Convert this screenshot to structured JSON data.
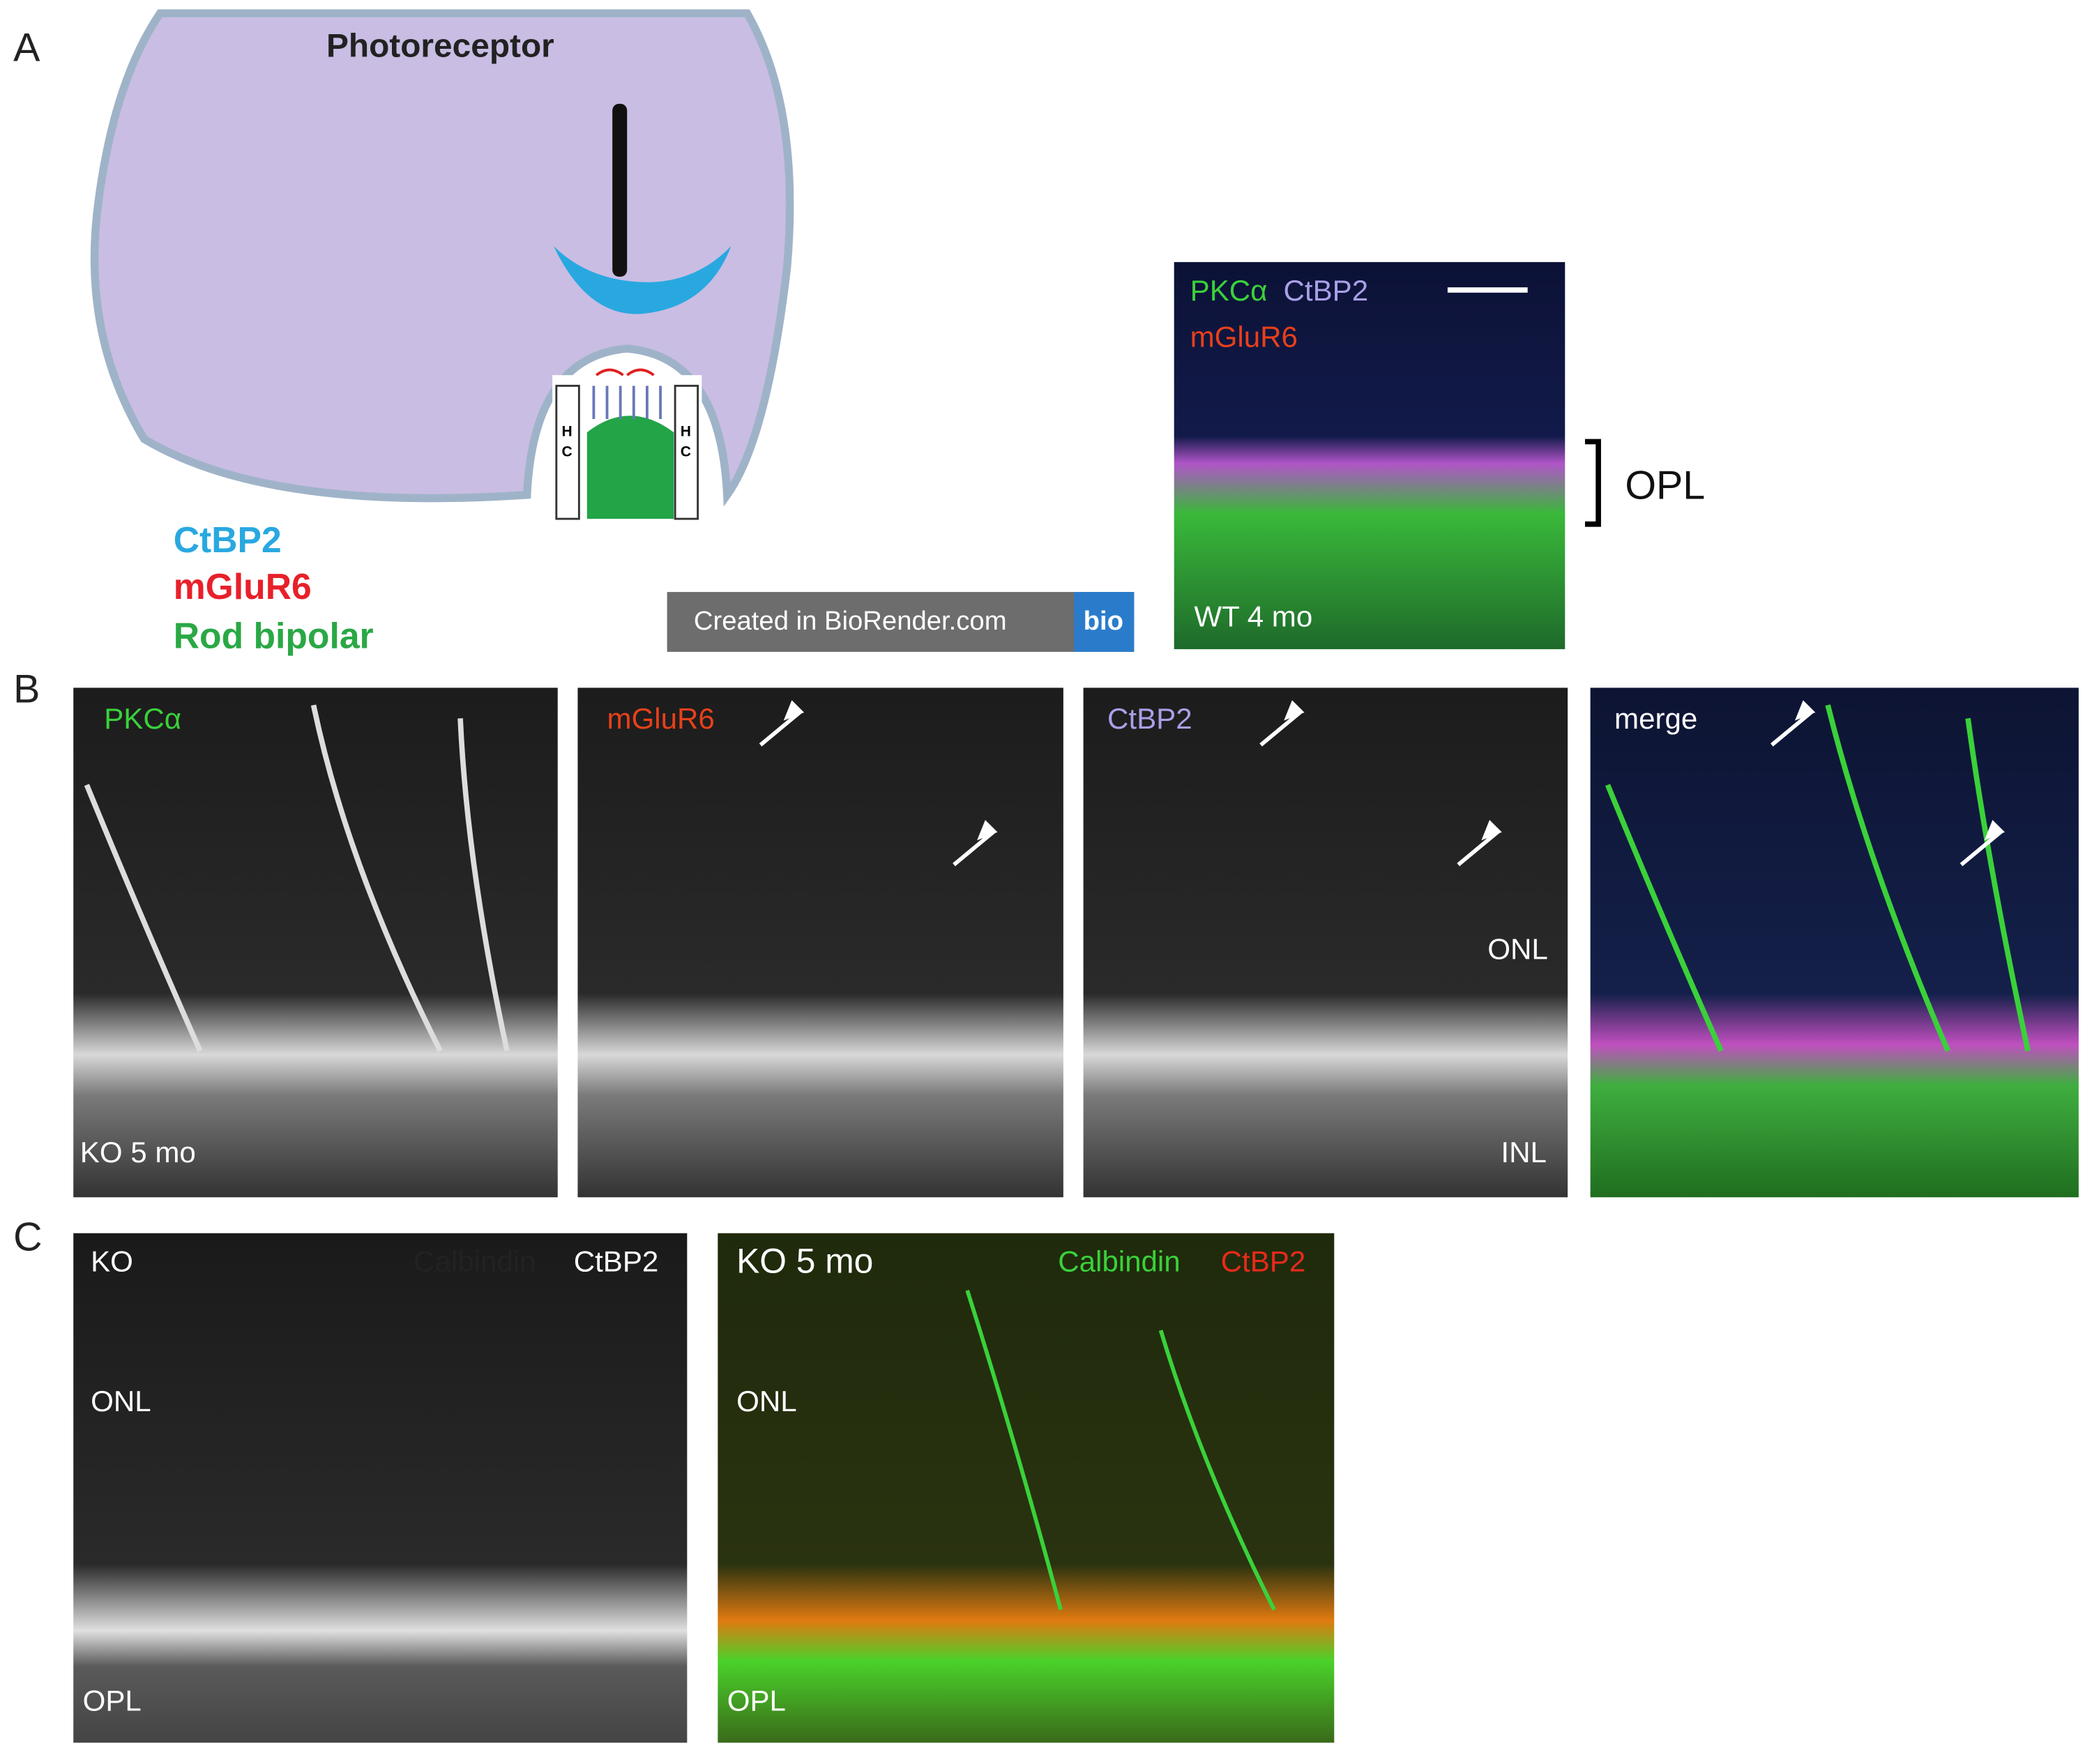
{
  "panel_a": {
    "label": "A",
    "cell_title": "Photoreceptor",
    "hc_left": [
      "H",
      "C"
    ],
    "hc_right": [
      "H",
      "C"
    ],
    "legend": [
      "CtBP2",
      "mGluR6",
      "Rod bipolar"
    ],
    "badge": {
      "text": "Created in BioRender.com",
      "logo": "bio"
    },
    "micrograph": {
      "markers": [
        "PKCα",
        "CtBP2",
        "mGluR6"
      ],
      "sample": "WT 4 mo",
      "layer": "OPL"
    }
  },
  "panel_b": {
    "label": "B",
    "images": [
      {
        "marker": "PKCα",
        "sample": "KO 5 mo"
      },
      {
        "marker": "mGluR6"
      },
      {
        "marker": "CtBP2",
        "layers": [
          "ONL",
          "INL"
        ]
      },
      {
        "marker": "merge"
      }
    ]
  },
  "panel_c": {
    "label": "C",
    "images": [
      {
        "sample": "KO",
        "markers": [
          "Calbindin",
          "CtBP2"
        ],
        "layers": [
          "ONL",
          "OPL"
        ]
      },
      {
        "sample": "KO 5 mo",
        "markers": [
          "Calbindin",
          "CtBP2"
        ],
        "layers": [
          "ONL",
          "OPL"
        ]
      }
    ]
  }
}
